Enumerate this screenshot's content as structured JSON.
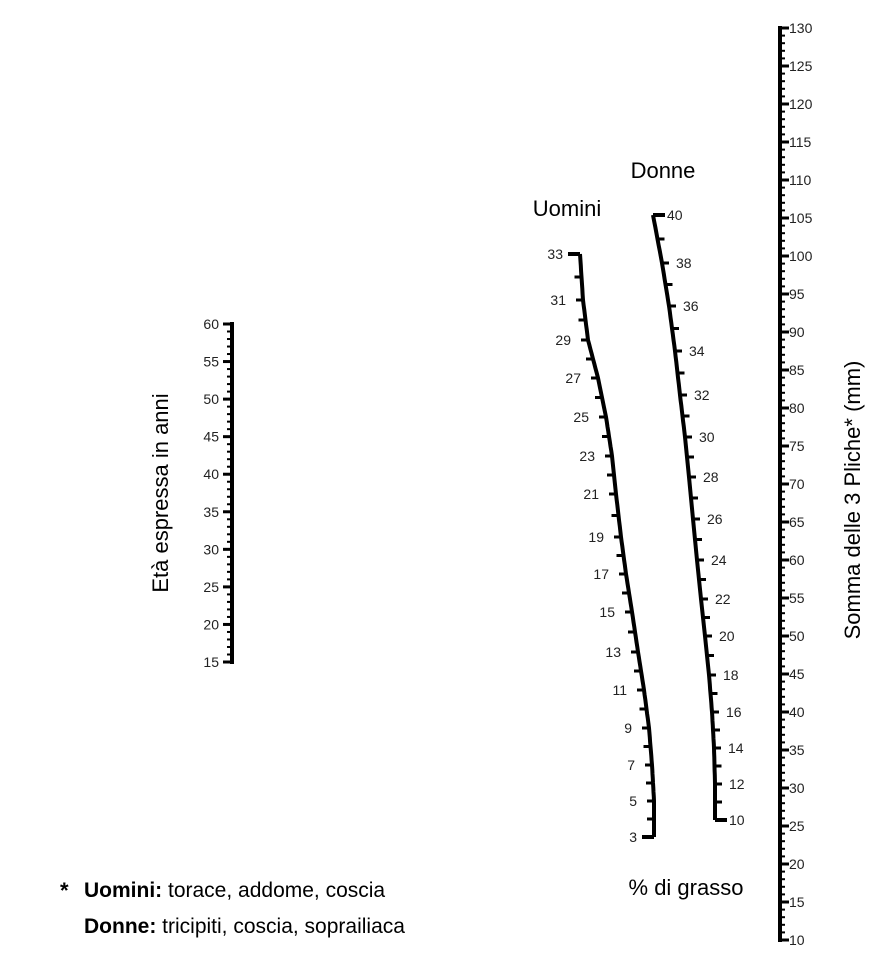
{
  "age_scale": {
    "title": "Età espressa in anni",
    "min": 15,
    "max": 60,
    "label_step": 5,
    "tick_step": 1,
    "labels": [
      "15",
      "20",
      "25",
      "30",
      "35",
      "40",
      "45",
      "50",
      "55",
      "60"
    ]
  },
  "skinfold_scale": {
    "title": "Somma delle 3 Pliche* (mm)",
    "min": 10,
    "max": 130,
    "label_step": 5,
    "tick_step": 1,
    "labels": [
      "10",
      "15",
      "20",
      "25",
      "30",
      "35",
      "40",
      "45",
      "50",
      "55",
      "60",
      "65",
      "70",
      "75",
      "80",
      "85",
      "90",
      "95",
      "100",
      "105",
      "110",
      "115",
      "120",
      "125",
      "130"
    ]
  },
  "fat_scales": {
    "caption": "% di grasso",
    "men": {
      "title": "Uomini",
      "min": 3,
      "max": 33,
      "labels": [
        "3",
        "5",
        "7",
        "9",
        "11",
        "13",
        "15",
        "17",
        "19",
        "21",
        "23",
        "25",
        "27",
        "29",
        "31",
        "33"
      ]
    },
    "women": {
      "title": "Donne",
      "min": 10,
      "max": 40,
      "labels": [
        "10",
        "12",
        "14",
        "16",
        "18",
        "20",
        "22",
        "24",
        "26",
        "28",
        "30",
        "32",
        "34",
        "36",
        "38",
        "40"
      ]
    }
  },
  "footnote": {
    "star": "*",
    "men_label": "Uomini:",
    "men_sites": "torace, addome, coscia",
    "women_label": "Donne:",
    "women_sites": "tricipiti, coscia, soprailiaca"
  }
}
